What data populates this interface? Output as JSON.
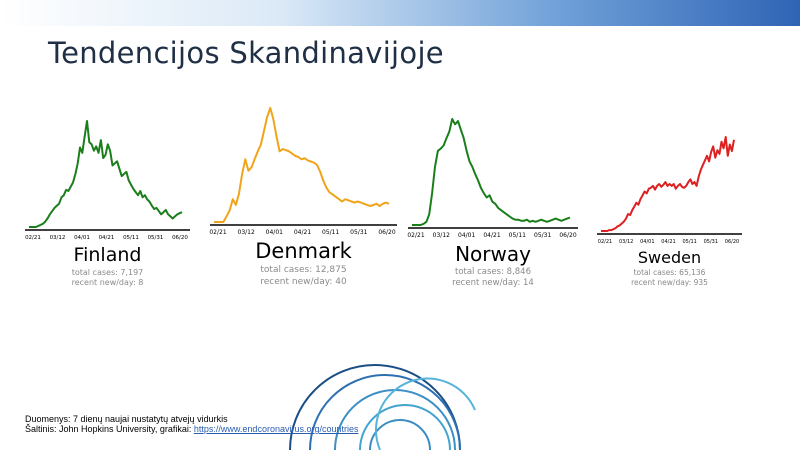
{
  "slide": {
    "title": "Tendencijos Skandinavijoje"
  },
  "notes": {
    "line1": "Duomenys: 7 dienų naujai nustatytų atvejų vidurkis",
    "line2_prefix": "Šaltinis: John Hopkins University, grafikai: ",
    "link": "https://www.endcoronavirus.org/countries"
  },
  "chart_data": [
    {
      "type": "line",
      "title": "Finland",
      "color": "#1a7f1a",
      "x_ticks": [
        "02/21",
        "03/12",
        "04/01",
        "04/21",
        "05/11",
        "05/31",
        "06/20"
      ],
      "stats": {
        "total": "total cases: 7,197",
        "recent": "recent new/day: 8"
      },
      "y": [
        0,
        0,
        0,
        0,
        1,
        2,
        3,
        5,
        8,
        12,
        15,
        18,
        20,
        22,
        28,
        30,
        35,
        34,
        38,
        42,
        50,
        60,
        75,
        70,
        85,
        100,
        80,
        78,
        72,
        76,
        70,
        82,
        65,
        68,
        78,
        72,
        58,
        60,
        62,
        55,
        48,
        50,
        52,
        44,
        40,
        36,
        33,
        30,
        34,
        28,
        30,
        26,
        24,
        20,
        17,
        18,
        15,
        12,
        14,
        16,
        12,
        10,
        8,
        10,
        12,
        13,
        14
      ]
    },
    {
      "type": "line",
      "title": "Denmark",
      "color": "#f0a41a",
      "x_ticks": [
        "02/21",
        "03/12",
        "04/01",
        "04/21",
        "05/11",
        "05/31",
        "06/20"
      ],
      "stats": {
        "total": "total cases: 12,875",
        "recent": "recent new/day: 40"
      },
      "y": [
        0,
        0,
        0,
        0,
        5,
        10,
        20,
        15,
        25,
        42,
        55,
        45,
        48,
        55,
        62,
        68,
        80,
        92,
        100,
        90,
        75,
        62,
        64,
        63,
        62,
        60,
        58,
        57,
        55,
        56,
        54,
        53,
        52,
        50,
        44,
        36,
        30,
        26,
        24,
        22,
        20,
        18,
        20,
        19,
        18,
        17,
        18,
        17,
        16,
        15,
        14,
        15,
        16,
        14,
        16,
        17,
        16
      ]
    },
    {
      "type": "line",
      "title": "Norway",
      "color": "#1a7f1a",
      "x_ticks": [
        "02/21",
        "03/12",
        "04/01",
        "04/21",
        "05/11",
        "05/31",
        "06/20"
      ],
      "stats": {
        "total": "total cases: 8,846",
        "recent": "recent new/day: 14"
      },
      "y": [
        0,
        0,
        0,
        0,
        1,
        3,
        10,
        30,
        55,
        70,
        72,
        75,
        82,
        88,
        100,
        95,
        98,
        90,
        82,
        70,
        60,
        55,
        48,
        42,
        35,
        30,
        26,
        28,
        22,
        20,
        16,
        14,
        12,
        10,
        8,
        6,
        5,
        5,
        4,
        4,
        5,
        3,
        4,
        3,
        4,
        5,
        4,
        3,
        4,
        5,
        6,
        5,
        4,
        5,
        6,
        7
      ]
    },
    {
      "type": "line",
      "title": "Sweden",
      "color": "#dd2020",
      "x_ticks": [
        "02/21",
        "03/12",
        "04/01",
        "04/21",
        "05/11",
        "05/31",
        "06/20"
      ],
      "stats": {
        "total": "total cases: 65,136",
        "recent": "recent new/day: 935"
      },
      "y": [
        0,
        0,
        0,
        0,
        1,
        1,
        2,
        3,
        5,
        6,
        8,
        10,
        13,
        18,
        17,
        22,
        26,
        30,
        28,
        34,
        38,
        42,
        40,
        45,
        46,
        48,
        44,
        48,
        50,
        47,
        49,
        52,
        48,
        50,
        48,
        50,
        45,
        48,
        50,
        47,
        46,
        48,
        52,
        55,
        50,
        52,
        48,
        58,
        65,
        70,
        75,
        80,
        74,
        84,
        90,
        78,
        86,
        82,
        95,
        88,
        100,
        80,
        92,
        85,
        97
      ]
    }
  ]
}
